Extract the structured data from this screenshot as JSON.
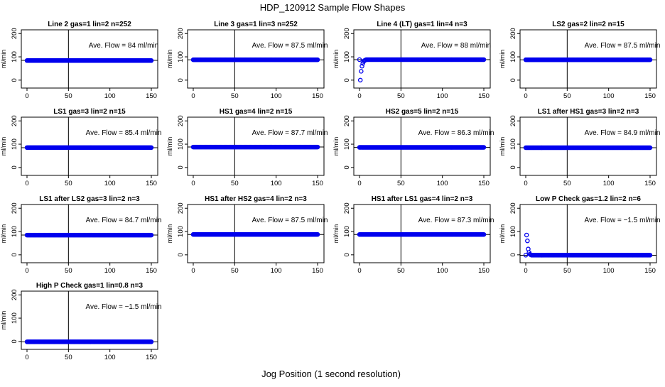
{
  "figure": {
    "title": "HDP_120912  Sample Flow Shapes",
    "xlabel": "Jog Position (1 second resolution)"
  },
  "colors": {
    "points": "#0000ee",
    "axis": "#000000",
    "background": "#ffffff"
  },
  "chart_data": [
    {
      "type": "scatter",
      "title": "Line 2 gas=1 lin=2 n=252",
      "annotation": "Ave. Flow =  84  ml/min",
      "ylabel": "ml/min",
      "xlim": [
        0,
        150
      ],
      "ylim": [
        0,
        200
      ],
      "xticks": [
        0,
        50,
        100,
        150
      ],
      "yticks": [
        0,
        100,
        200
      ],
      "ref_lines": {
        "v": 50,
        "h": 85
      },
      "series": [
        {
          "x_range": [
            0,
            150
          ],
          "n": 151,
          "y": 84,
          "ramp": null
        }
      ]
    },
    {
      "type": "scatter",
      "title": "Line 3 gas=1 lin=3 n=252",
      "annotation": "Ave. Flow =  87.5  ml/min",
      "ylabel": "ml/min",
      "xlim": [
        0,
        150
      ],
      "ylim": [
        0,
        200
      ],
      "xticks": [
        0,
        50,
        100,
        150
      ],
      "yticks": [
        0,
        100,
        200
      ],
      "ref_lines": {
        "v": 50,
        "h": 87
      },
      "series": [
        {
          "x_range": [
            0,
            150
          ],
          "n": 151,
          "y": 87.5,
          "ramp": null
        }
      ]
    },
    {
      "type": "scatter",
      "title": "Line 4 (LT) gas=1 lin=4 n=3",
      "annotation": "Ave. Flow =  88  ml/min",
      "ylabel": "ml/min",
      "xlim": [
        0,
        150
      ],
      "ylim": [
        0,
        200
      ],
      "xticks": [
        0,
        50,
        100,
        150
      ],
      "yticks": [
        0,
        100,
        200
      ],
      "ref_lines": {
        "v": 50,
        "h": 88
      },
      "series": [
        {
          "x_range": [
            0,
            150
          ],
          "n": 151,
          "y": 88,
          "ramp": [
            [
              1,
              0
            ],
            [
              2,
              38
            ],
            [
              3,
              60
            ],
            [
              4,
              72
            ],
            [
              5,
              80
            ],
            [
              6,
              84
            ],
            [
              7,
              86
            ]
          ]
        }
      ]
    },
    {
      "type": "scatter",
      "title": "LS2 gas=2 lin=2 n=15",
      "annotation": "Ave. Flow =  87.5  ml/min",
      "ylabel": "ml/min",
      "xlim": [
        0,
        150
      ],
      "ylim": [
        0,
        200
      ],
      "xticks": [
        0,
        50,
        100,
        150
      ],
      "yticks": [
        0,
        100,
        200
      ],
      "ref_lines": {
        "v": 50,
        "h": 87
      },
      "series": [
        {
          "x_range": [
            0,
            150
          ],
          "n": 151,
          "y": 87.5,
          "ramp": null
        }
      ]
    },
    {
      "type": "scatter",
      "title": "LS1 gas=3 lin=2 n=15",
      "annotation": "Ave. Flow =  85.4  ml/min",
      "ylabel": "ml/min",
      "xlim": [
        0,
        150
      ],
      "ylim": [
        0,
        200
      ],
      "xticks": [
        0,
        50,
        100,
        150
      ],
      "yticks": [
        0,
        100,
        200
      ],
      "ref_lines": {
        "v": 50,
        "h": 85
      },
      "series": [
        {
          "x_range": [
            0,
            150
          ],
          "n": 151,
          "y": 85.4,
          "ramp": null
        }
      ]
    },
    {
      "type": "scatter",
      "title": "HS1 gas=4 lin=2 n=15",
      "annotation": "Ave. Flow =  87.7  ml/min",
      "ylabel": "ml/min",
      "xlim": [
        0,
        150
      ],
      "ylim": [
        0,
        200
      ],
      "xticks": [
        0,
        50,
        100,
        150
      ],
      "yticks": [
        0,
        100,
        200
      ],
      "ref_lines": {
        "v": 50,
        "h": 88
      },
      "series": [
        {
          "x_range": [
            0,
            150
          ],
          "n": 151,
          "y": 87.7,
          "ramp": null
        }
      ]
    },
    {
      "type": "scatter",
      "title": "HS2 gas=5 lin=2 n=15",
      "annotation": "Ave. Flow =  86.3  ml/min",
      "ylabel": "ml/min",
      "xlim": [
        0,
        150
      ],
      "ylim": [
        0,
        200
      ],
      "xticks": [
        0,
        50,
        100,
        150
      ],
      "yticks": [
        0,
        100,
        200
      ],
      "ref_lines": {
        "v": 50,
        "h": 86
      },
      "series": [
        {
          "x_range": [
            0,
            150
          ],
          "n": 151,
          "y": 86.3,
          "ramp": null
        }
      ]
    },
    {
      "type": "scatter",
      "title": "LS1 after HS1 gas=3 lin=2 n=3",
      "annotation": "Ave. Flow =  84.9  ml/min",
      "ylabel": "ml/min",
      "xlim": [
        0,
        150
      ],
      "ylim": [
        0,
        200
      ],
      "xticks": [
        0,
        50,
        100,
        150
      ],
      "yticks": [
        0,
        100,
        200
      ],
      "ref_lines": {
        "v": 50,
        "h": 85
      },
      "series": [
        {
          "x_range": [
            0,
            150
          ],
          "n": 151,
          "y": 84.9,
          "ramp": null
        }
      ]
    },
    {
      "type": "scatter",
      "title": "LS1 after LS2 gas=3 lin=2 n=3",
      "annotation": "Ave. Flow =  84.7  ml/min",
      "ylabel": "ml/min",
      "xlim": [
        0,
        150
      ],
      "ylim": [
        0,
        200
      ],
      "xticks": [
        0,
        50,
        100,
        150
      ],
      "yticks": [
        0,
        100,
        200
      ],
      "ref_lines": {
        "v": 50,
        "h": 85
      },
      "series": [
        {
          "x_range": [
            0,
            150
          ],
          "n": 151,
          "y": 84.7,
          "ramp": null
        }
      ]
    },
    {
      "type": "scatter",
      "title": "HS1 after HS2 gas=4 lin=2 n=3",
      "annotation": "Ave. Flow =  87.5  ml/min",
      "ylabel": "ml/min",
      "xlim": [
        0,
        150
      ],
      "ylim": [
        0,
        200
      ],
      "xticks": [
        0,
        50,
        100,
        150
      ],
      "yticks": [
        0,
        100,
        200
      ],
      "ref_lines": {
        "v": 50,
        "h": 87
      },
      "series": [
        {
          "x_range": [
            0,
            150
          ],
          "n": 151,
          "y": 87.5,
          "ramp": null
        }
      ]
    },
    {
      "type": "scatter",
      "title": "HS1 after LS1 gas=4 lin=2 n=3",
      "annotation": "Ave. Flow =  87.3  ml/min",
      "ylabel": "ml/min",
      "xlim": [
        0,
        150
      ],
      "ylim": [
        0,
        200
      ],
      "xticks": [
        0,
        50,
        100,
        150
      ],
      "yticks": [
        0,
        100,
        200
      ],
      "ref_lines": {
        "v": 50,
        "h": 87
      },
      "series": [
        {
          "x_range": [
            0,
            150
          ],
          "n": 151,
          "y": 87.3,
          "ramp": null
        }
      ]
    },
    {
      "type": "scatter",
      "title": "Low P Check gas=1.2 lin=2 n=6",
      "annotation": "Ave. Flow =  −1.5  ml/min",
      "ylabel": "ml/min",
      "xlim": [
        0,
        150
      ],
      "ylim": [
        0,
        200
      ],
      "xticks": [
        0,
        50,
        100,
        150
      ],
      "yticks": [
        0,
        100,
        200
      ],
      "ref_lines": {
        "v": 50,
        "h": -2
      },
      "series": [
        {
          "x_range": [
            0,
            150
          ],
          "n": 151,
          "y": -1.5,
          "ramp": [
            [
              1,
              85
            ],
            [
              2,
              60
            ],
            [
              3,
              25
            ],
            [
              4,
              10
            ],
            [
              5,
              3
            ],
            [
              6,
              0
            ]
          ]
        }
      ]
    },
    {
      "type": "scatter",
      "title": "High P Check gas=1 lin=0.8 n=3",
      "annotation": "Ave. Flow =  −1.5  ml/min",
      "ylabel": "ml/min",
      "xlim": [
        0,
        150
      ],
      "ylim": [
        0,
        200
      ],
      "xticks": [
        0,
        50,
        100,
        150
      ],
      "yticks": [
        0,
        100,
        200
      ],
      "ref_lines": {
        "v": 50,
        "h": -2
      },
      "series": [
        {
          "x_range": [
            0,
            150
          ],
          "n": 151,
          "y": -1.5,
          "ramp": null
        }
      ]
    }
  ]
}
